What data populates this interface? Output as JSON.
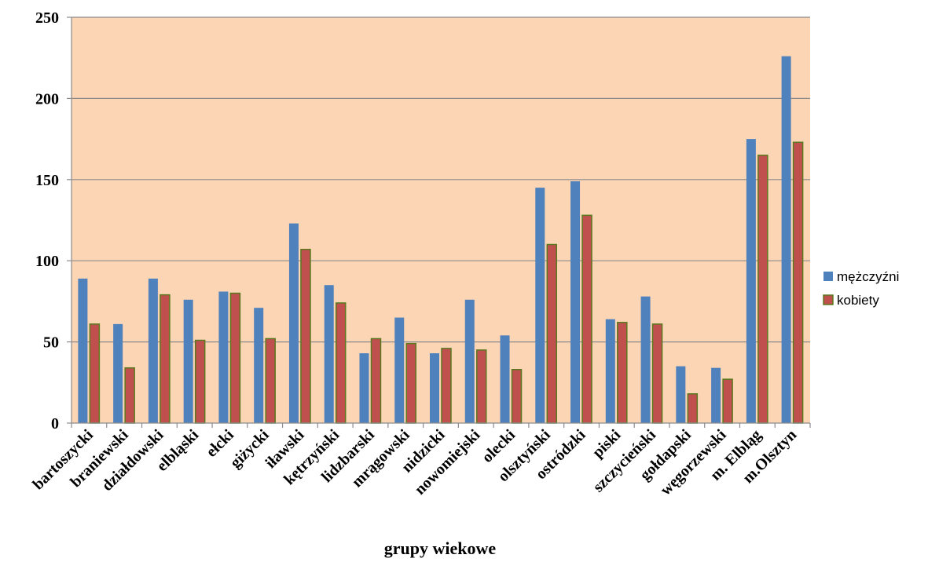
{
  "chart_data": {
    "type": "bar",
    "categories": [
      "bartoszycki",
      "braniewski",
      "działdowski",
      "elbląski",
      "ełcki",
      "giżycki",
      "iławski",
      "kętrzyński",
      "lidzbarski",
      "mrągowski",
      "nidzicki",
      "nowomiejski",
      "olecki",
      "olsztyński",
      "ostródzki",
      "piski",
      "szczycieński",
      "gołdapski",
      "węgorzewski",
      "m. Elbląg",
      "m.Olsztyn"
    ],
    "series": [
      {
        "name": "mężczyźni",
        "color": "#4F81BD",
        "values": [
          89,
          61,
          89,
          76,
          81,
          71,
          123,
          85,
          43,
          65,
          43,
          76,
          54,
          145,
          149,
          64,
          78,
          35,
          34,
          175,
          226
        ]
      },
      {
        "name": "kobiety",
        "color": "#C0504D",
        "values": [
          61,
          34,
          79,
          51,
          80,
          52,
          107,
          74,
          52,
          49,
          46,
          45,
          33,
          110,
          128,
          62,
          61,
          18,
          27,
          165,
          173
        ]
      }
    ],
    "title": "",
    "xlabel": "grupy wiekowe",
    "ylabel": "",
    "ylim": [
      0,
      250
    ],
    "yticks": [
      "0",
      "50",
      "100",
      "150",
      "200",
      "250"
    ],
    "grid": true,
    "legend": "right",
    "plot_background": "#FCD5B5"
  }
}
